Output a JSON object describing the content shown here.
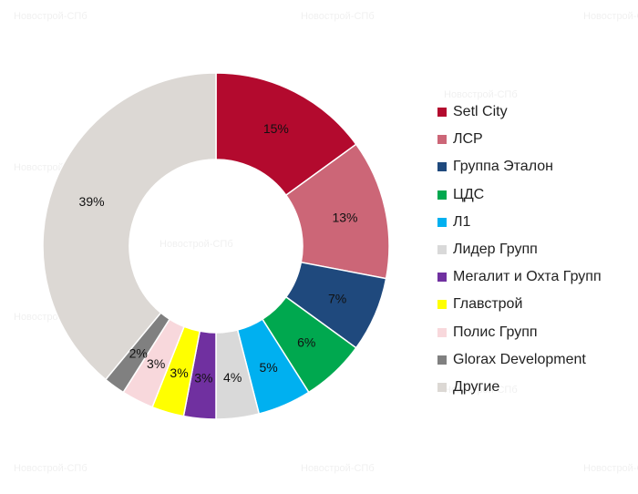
{
  "chart_data": {
    "type": "pie",
    "variant": "donut",
    "legend_position": "right",
    "slices": [
      {
        "name": "Setl City",
        "value": 15,
        "label": "15%",
        "color": "#b30a2e"
      },
      {
        "name": "ЛСР",
        "value": 13,
        "label": "13%",
        "color": "#cc6677"
      },
      {
        "name": "Группа Эталон",
        "value": 7,
        "label": "7%",
        "color": "#1f497d"
      },
      {
        "name": "ЦДС",
        "value": 6,
        "label": "6%",
        "color": "#00a84f"
      },
      {
        "name": "Л1",
        "value": 5,
        "label": "5%",
        "color": "#00b0f0"
      },
      {
        "name": "Лидер Групп",
        "value": 4,
        "label": "4%",
        "color": "#d9d9d9"
      },
      {
        "name": "Мегалит и Охта Групп",
        "value": 3,
        "label": "3%",
        "color": "#7030a0"
      },
      {
        "name": "Главстрой",
        "value": 3,
        "label": "3%",
        "color": "#ffff00"
      },
      {
        "name": "Полис Групп",
        "value": 3,
        "label": "3%",
        "color": "#f8d8dc"
      },
      {
        "name": "Glorax Development",
        "value": 2,
        "label": "2%",
        "color": "#808080"
      },
      {
        "name": "Другие",
        "value": 39,
        "label": "39%",
        "color": "#dcd8d4"
      }
    ]
  },
  "watermark": "Новострой-СПб"
}
